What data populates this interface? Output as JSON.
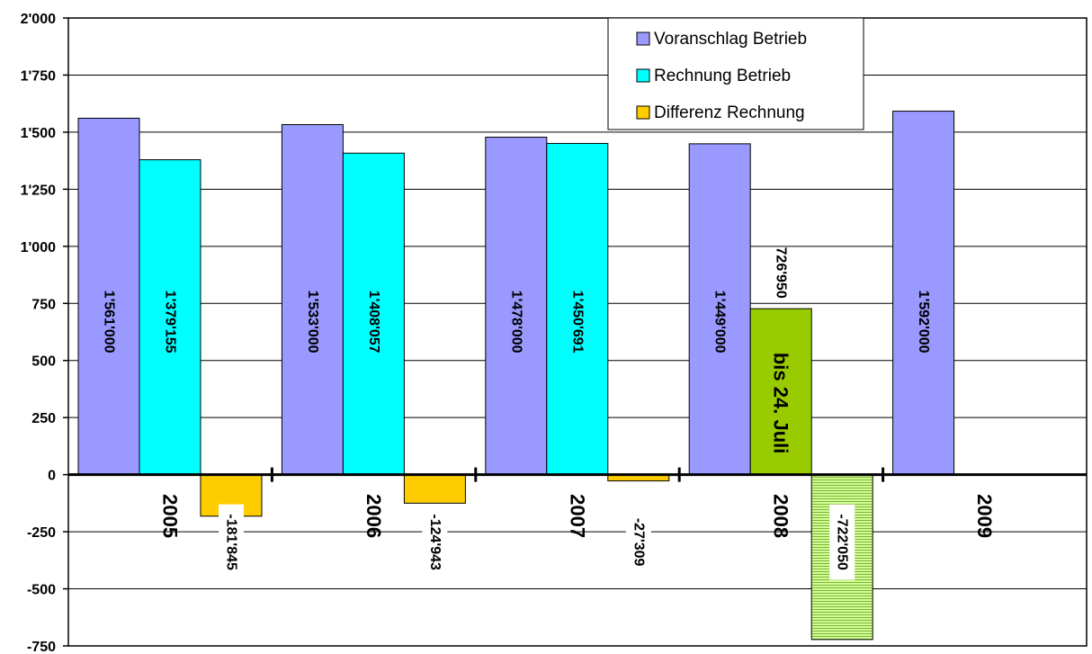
{
  "chart_data": {
    "type": "bar",
    "categories": [
      "2005",
      "2006",
      "2007",
      "2008",
      "2009"
    ],
    "series": [
      {
        "name": "Voranschlag Betrieb",
        "color": "#9999FF",
        "values": [
          1561000,
          1533000,
          1478000,
          1449000,
          1592000
        ],
        "labels": [
          "1'561'000",
          "1'533'000",
          "1'478'000",
          "1'449'000",
          "1'592'000"
        ]
      },
      {
        "name": "Rechnung Betrieb",
        "color": "#00FFFF",
        "values": [
          1379155,
          1408057,
          1450691,
          726950,
          null
        ],
        "labels": [
          "1'379'155",
          "1'408'057",
          "1'450'691",
          "726'950",
          ""
        ]
      },
      {
        "name": "Differenz Rechnung",
        "color": "#FFCC00",
        "values": [
          -181845,
          -124943,
          -27309,
          -722050,
          null
        ],
        "labels": [
          "-181'845",
          "-124'943",
          "-27'309",
          "-722'050",
          ""
        ]
      }
    ],
    "special_colors": {
      "rechnung_2008": "#99CC00",
      "differenz_2008": "#CCFF99",
      "differenz_2008_hatch": "#88B030"
    },
    "annotation": "bis 24. Juli",
    "y_ticks": [
      "-750",
      "-500",
      "-250",
      "0",
      "250",
      "500",
      "750",
      "1'000",
      "1'250",
      "1'500",
      "1'750",
      "2'000"
    ],
    "y_tick_values": [
      -750,
      -500,
      -250,
      0,
      250,
      500,
      750,
      1000,
      1250,
      1500,
      1750,
      2000
    ],
    "ylim": [
      -750,
      2000
    ],
    "value_unit": "thousands",
    "grid": true,
    "legend_position": "top-right"
  }
}
